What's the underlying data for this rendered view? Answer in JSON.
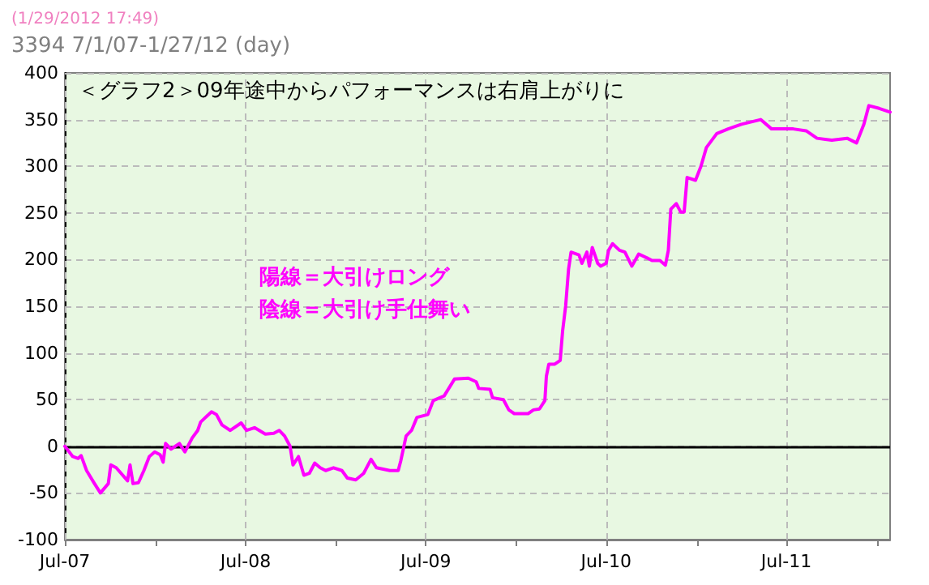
{
  "chart_data": {
    "type": "line",
    "title": "3394 7/1/07-1/27/12 (day)",
    "subtitle": "(1/29/2012 17:49)",
    "annotations": [
      "＜グラフ2＞09年途中からパフォーマンスは右肩上がりに",
      "陽線＝大引けロング",
      "陰線＝大引け手仕舞い"
    ],
    "series": [
      {
        "color": "#ff00ff",
        "x": [
          "2007-07-01",
          "2007-07-17",
          "2007-07-28",
          "2007-08-03",
          "2007-08-14",
          "2007-08-30",
          "2007-09-11",
          "2007-09-27",
          "2007-10-02",
          "2007-10-13",
          "2007-11-05",
          "2007-11-10",
          "2007-11-16",
          "2007-11-27",
          "2007-12-08",
          "2007-12-19",
          "2007-12-30",
          "2008-01-10",
          "2008-01-16",
          "2008-01-21",
          "2008-02-01",
          "2008-02-18",
          "2008-02-29",
          "2008-03-15",
          "2008-03-26",
          "2008-04-01",
          "2008-04-23",
          "2008-05-03",
          "2008-05-14",
          "2008-05-31",
          "2008-06-22",
          "2008-07-03",
          "2008-07-19",
          "2008-08-10",
          "2008-08-27",
          "2008-09-07",
          "2008-09-18",
          "2008-09-29",
          "2008-10-05",
          "2008-10-16",
          "2008-10-27",
          "2008-11-07",
          "2008-11-18",
          "2008-11-29",
          "2008-12-10",
          "2008-12-26",
          "2009-01-12",
          "2009-01-23",
          "2009-02-09",
          "2009-02-25",
          "2009-03-12",
          "2009-03-23",
          "2009-04-19",
          "2009-05-06",
          "2009-05-11",
          "2009-05-22",
          "2009-06-02",
          "2009-06-13",
          "2009-07-05",
          "2009-07-16",
          "2009-08-07",
          "2009-08-28",
          "2009-09-25",
          "2009-10-11",
          "2009-10-16",
          "2009-11-08",
          "2009-11-13",
          "2009-12-05",
          "2009-12-16",
          "2009-12-27",
          "2010-01-24",
          "2010-02-04",
          "2010-02-16",
          "2010-02-27",
          "2010-03-02",
          "2010-03-07",
          "2010-03-19",
          "2010-03-30",
          "2010-04-04",
          "2010-04-10",
          "2010-04-16",
          "2010-04-21",
          "2010-05-07",
          "2010-05-13",
          "2010-05-23",
          "2010-05-28",
          "2010-06-03",
          "2010-06-14",
          "2010-06-20",
          "2010-07-01",
          "2010-07-06",
          "2010-07-14",
          "2010-07-28",
          "2010-08-08",
          "2010-08-22",
          "2010-09-05",
          "2010-09-21",
          "2010-10-02",
          "2010-10-18",
          "2010-10-29",
          "2010-11-04",
          "2010-11-09",
          "2010-11-20",
          "2010-11-29",
          "2010-12-06",
          "2010-12-12",
          "2010-12-29",
          "2011-01-09",
          "2011-01-20",
          "2011-02-10",
          "2011-03-05",
          "2011-04-01",
          "2011-05-10",
          "2011-06-01",
          "2011-07-15",
          "2011-08-10",
          "2011-09-01",
          "2011-10-01",
          "2011-11-01",
          "2011-11-20",
          "2011-12-05",
          "2011-12-15",
          "2012-01-05",
          "2012-01-27"
        ],
        "values": [
          0,
          -11,
          -13,
          -10,
          -26,
          -40,
          -50,
          -40,
          -20,
          -23,
          -37,
          -20,
          -40,
          -39,
          -26,
          -11,
          -6,
          -9,
          -17,
          3,
          -3,
          3,
          -6,
          9,
          17,
          26,
          37,
          34,
          23,
          17,
          25,
          17,
          20,
          13,
          14,
          17,
          11,
          0,
          -20,
          -11,
          -31,
          -29,
          -18,
          -23,
          -26,
          -23,
          -26,
          -34,
          -36,
          -29,
          -14,
          -23,
          -26,
          -26,
          -16,
          11,
          17,
          31,
          34,
          49,
          54,
          72,
          73,
          69,
          62,
          61,
          52,
          50,
          39,
          35,
          35,
          39,
          40,
          49,
          75,
          88,
          88,
          92,
          124,
          150,
          190,
          208,
          205,
          196,
          208,
          193,
          213,
          196,
          193,
          196,
          210,
          217,
          210,
          208,
          193,
          206,
          202,
          199,
          199,
          194,
          210,
          254,
          260,
          251,
          251,
          288,
          285,
          300,
          320,
          335,
          340,
          345,
          350,
          340,
          340,
          338,
          330,
          328,
          330,
          325,
          345,
          365,
          362,
          358
        ]
      }
    ],
    "xlim": [
      "2007-07-01",
      "2012-01-27"
    ],
    "xticks": [
      {
        "value": "2007-07-01",
        "label": "Jul-07"
      },
      {
        "value": "2008-01-01",
        "label": null
      },
      {
        "value": "2008-07-01",
        "label": "Jul-08"
      },
      {
        "value": "2009-01-01",
        "label": null
      },
      {
        "value": "2009-07-01",
        "label": "Jul-09"
      },
      {
        "value": "2010-01-01",
        "label": null
      },
      {
        "value": "2010-07-01",
        "label": "Jul-10"
      },
      {
        "value": "2011-01-01",
        "label": null
      },
      {
        "value": "2011-07-01",
        "label": "Jul-11"
      },
      {
        "value": "2012-01-01",
        "label": null
      }
    ],
    "ylim": [
      -100,
      400
    ],
    "yticks": [
      -100,
      -50,
      0,
      50,
      100,
      150,
      200,
      250,
      300,
      350,
      400
    ],
    "ref_lines": [
      {
        "axis": "y",
        "value": 0,
        "color": "#000000"
      }
    ],
    "grid": true,
    "marker": "none",
    "line_style": "solid"
  }
}
